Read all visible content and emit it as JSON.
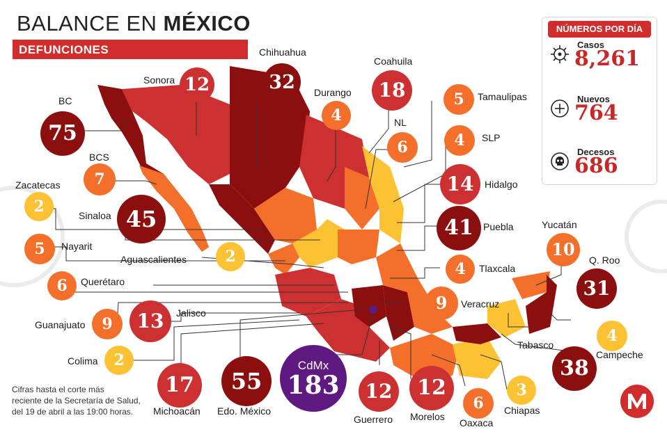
{
  "header": {
    "title_light": "BALANCE EN ",
    "title_bold": "MÉXICO",
    "subtitle": "DEFUNCIONES"
  },
  "legend": {
    "title": "NÚMEROS POR DÍA",
    "items": [
      {
        "label": "Casos",
        "value": "8,261",
        "icon": "virus-icon"
      },
      {
        "label": "Nuevos",
        "value": "764",
        "icon": "plus-icon"
      },
      {
        "label": "Decesos",
        "value": "686",
        "icon": "skull-icon"
      }
    ]
  },
  "note": [
    "Cifras hasta el corte más",
    "reciente de la Secretaría de Salud,",
    "del 19 de abril a las 19:00 horas."
  ],
  "states": [
    {
      "name": "Sonora",
      "value": "12"
    },
    {
      "name": "Chihuahua",
      "value": "32"
    },
    {
      "name": "Coahuila",
      "value": "18"
    },
    {
      "name": "Durango",
      "value": "4"
    },
    {
      "name": "Tamaulipas",
      "value": "5"
    },
    {
      "name": "BC",
      "value": "75"
    },
    {
      "name": "NL",
      "value": "6"
    },
    {
      "name": "SLP",
      "value": "4"
    },
    {
      "name": "BCS",
      "value": "7"
    },
    {
      "name": "Hidalgo",
      "value": "14"
    },
    {
      "name": "Zacatecas",
      "value": "2"
    },
    {
      "name": "Sinaloa",
      "value": "45"
    },
    {
      "name": "Puebla",
      "value": "41"
    },
    {
      "name": "Nayarit",
      "value": "5"
    },
    {
      "name": "Aguascalientes",
      "value": "2"
    },
    {
      "name": "Yucatán",
      "value": "10"
    },
    {
      "name": "Tlaxcala",
      "value": "4"
    },
    {
      "name": "Q. Roo",
      "value": "31"
    },
    {
      "name": "Querétaro",
      "value": "6"
    },
    {
      "name": "Veracruz",
      "value": "9"
    },
    {
      "name": "Guanajuato",
      "value": "9"
    },
    {
      "name": "Jalisco",
      "value": "13"
    },
    {
      "name": "Tabasco",
      "value": "38"
    },
    {
      "name": "Campeche",
      "value": "4"
    },
    {
      "name": "Colima",
      "value": "2"
    },
    {
      "name": "Michoacán",
      "value": "17"
    },
    {
      "name": "Edo. México",
      "value": "55"
    },
    {
      "name": "CdMx",
      "value": "183"
    },
    {
      "name": "Guerrero",
      "value": "12"
    },
    {
      "name": "Morelos",
      "value": "12"
    },
    {
      "name": "Oaxaca",
      "value": "6"
    },
    {
      "name": "Chiapas",
      "value": "3"
    }
  ],
  "colors": {
    "yellow": "#fcc233",
    "orange": "#f36f2a",
    "red": "#cc3030",
    "darkred": "#8c0f0f",
    "purple": "#5e1a80",
    "accent": "#d12d2d"
  }
}
